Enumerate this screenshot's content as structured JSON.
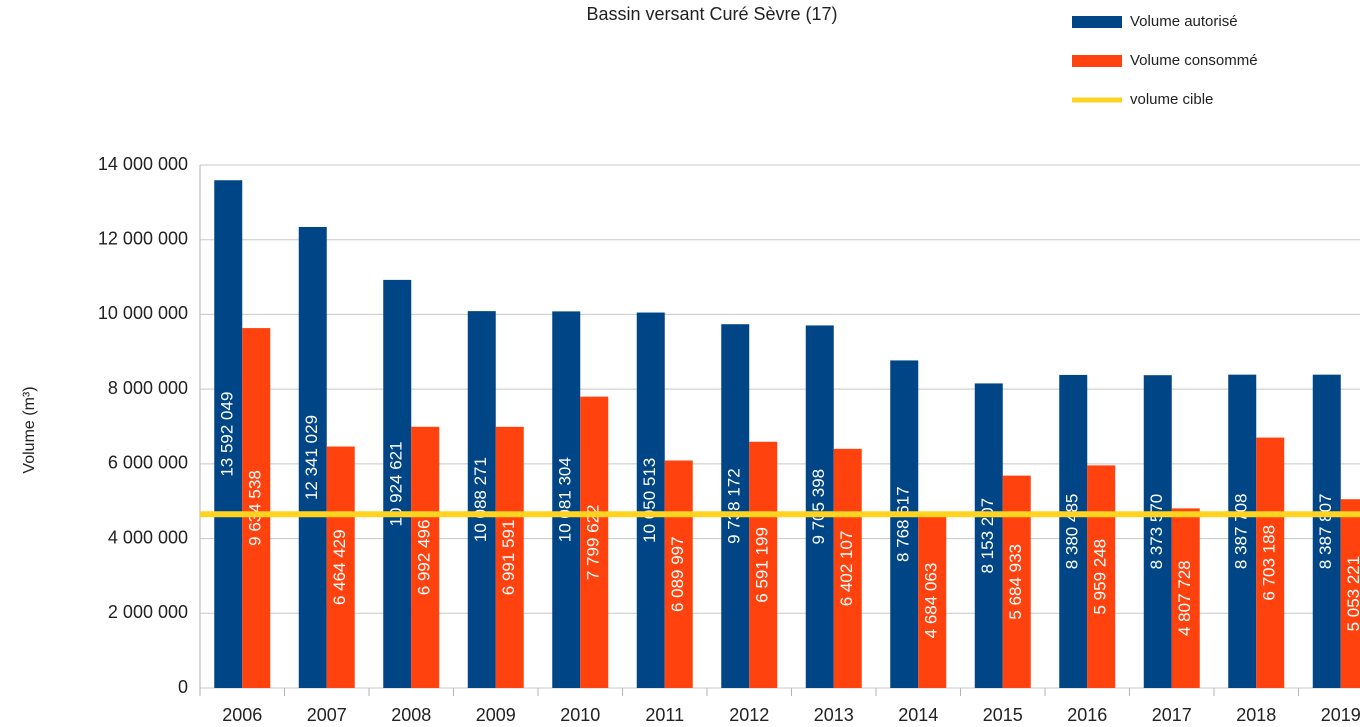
{
  "chart_data": {
    "type": "bar",
    "title": "Bassin versant Curé Sèvre (17)",
    "y_label": "Volume (m³)",
    "categories": [
      "2006",
      "2007",
      "2008",
      "2009",
      "2010",
      "2011",
      "2012",
      "2013",
      "2014",
      "2015",
      "2016",
      "2017",
      "2018",
      "2019"
    ],
    "series": [
      {
        "name": "Volume autorisé",
        "color": "#004586",
        "values": [
          13592049,
          12341029,
          10924621,
          10088271,
          10081304,
          10050513,
          9738172,
          9705398,
          8768617,
          8153207,
          8380485,
          8373570,
          8387708,
          8387807
        ],
        "value_labels": [
          "13 592 049",
          "12 341 029",
          "10 924 621",
          "10 088 271",
          "10 081 304",
          "10 050 513",
          "9 738 172",
          "9 705 398",
          "8 768 617",
          "8 153 207",
          "8 380 485",
          "8 373 570",
          "8 387 708",
          "8 387 807"
        ]
      },
      {
        "name": "Volume consommé",
        "color": "#ff420e",
        "values": [
          9634538,
          6464429,
          6992496,
          6991591,
          7799622,
          6089997,
          6591199,
          6402107,
          4684063,
          5684933,
          5959248,
          4807728,
          6703188,
          5053221
        ],
        "value_labels": [
          "9 634 538",
          "6 464 429",
          "6 992 496",
          "6 991 591",
          "7 799 622",
          "6 089 997",
          "6 591 199",
          "6 402 107",
          "4 684 063",
          "5 684 933",
          "5 959 248",
          "4 807 728",
          "6 703 188",
          "5 053 221"
        ]
      }
    ],
    "target": {
      "name": "volume cible",
      "color": "#ffd320",
      "value": 4650000
    },
    "ylim": [
      0,
      14000000
    ],
    "yticks": [
      0,
      {
        "value": 2000000,
        "label": "2 000 000"
      },
      {
        "value": 4000000,
        "label": "4 000 000"
      },
      {
        "value": 6000000,
        "label": "6 000 000"
      },
      {
        "value": 8000000,
        "label": "8 000 000"
      },
      {
        "value": 10000000,
        "label": "10 000 000"
      },
      {
        "value": 12000000,
        "label": "12 000 000"
      },
      {
        "value": 14000000,
        "label": "14 000 000"
      }
    ],
    "grid": true,
    "legend": "top-right"
  }
}
